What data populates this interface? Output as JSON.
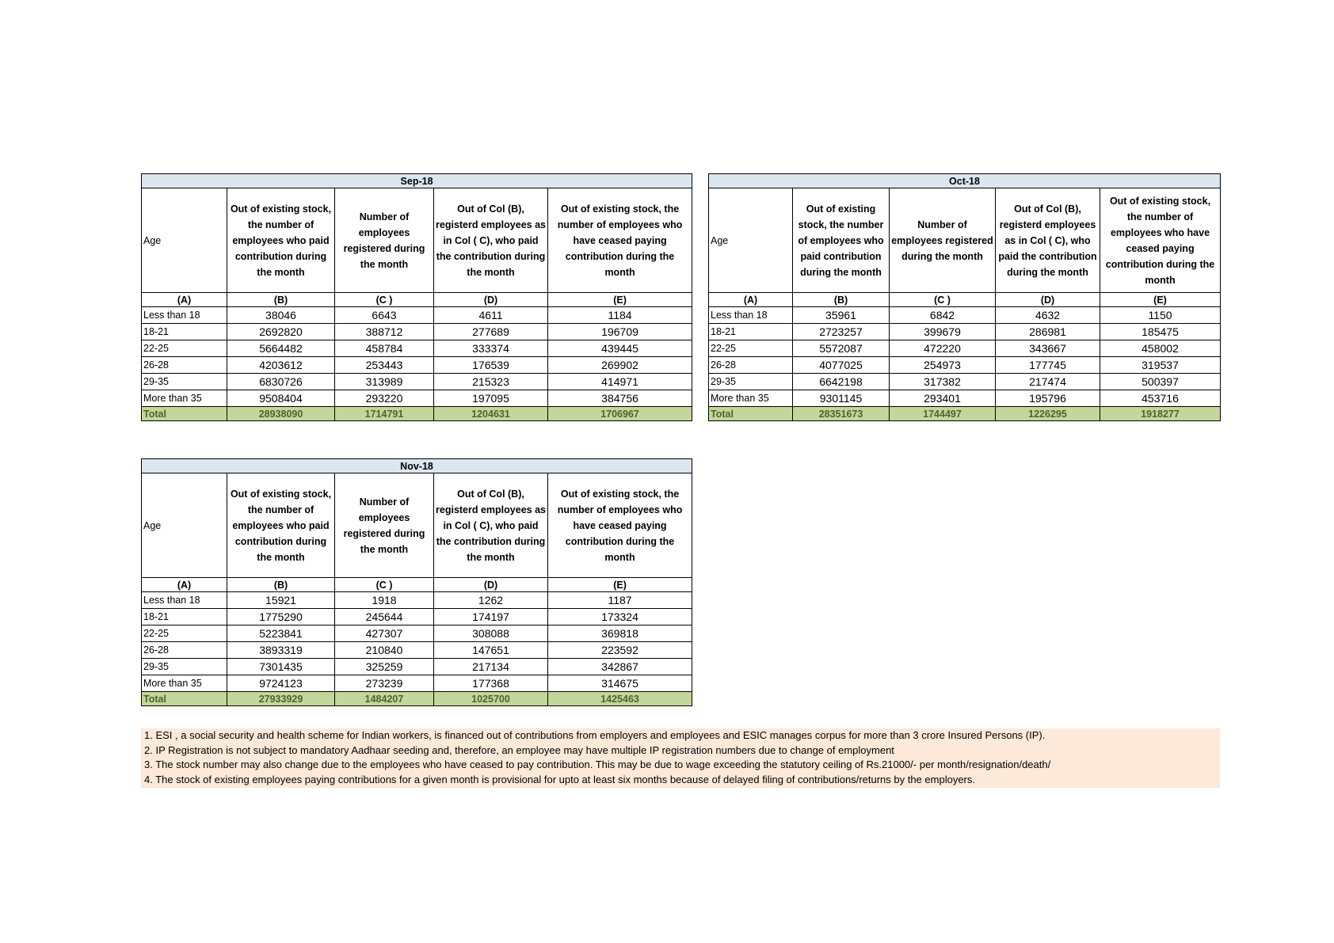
{
  "tables": [
    {
      "title": "Sep-18",
      "headers": [
        "Age",
        "Out of existing stock, the number of employees who paid contribution during the month",
        "Number of employees registered during the month",
        "Out of Col (B), registerd employees as in Col ( C), who paid the contribution during the month",
        "Out of existing stock, the number of  employees  who have ceased paying contribution during the month"
      ],
      "letters": [
        "(A)",
        "(B)",
        "(C )",
        "(D)",
        "(E)"
      ],
      "rows": [
        [
          "Less than 18",
          38046,
          6643,
          4611,
          1184
        ],
        [
          "18-21",
          2692820,
          388712,
          277689,
          196709
        ],
        [
          "22-25",
          5664482,
          458784,
          333374,
          439445
        ],
        [
          "26-28",
          4203612,
          253443,
          176539,
          269902
        ],
        [
          "29-35",
          6830726,
          313989,
          215323,
          414971
        ],
        [
          "More than 35",
          9508404,
          293220,
          197095,
          384756
        ]
      ],
      "total": [
        "Total",
        28938090,
        1714791,
        1204631,
        1706967
      ]
    },
    {
      "title": "Oct-18",
      "headers": [
        "Age",
        "Out of existing stock, the number of employees who paid contribution during the month",
        "Number of employees registered during the month",
        "Out of Col (B), registerd employees as in Col ( C), who paid the contribution during the month",
        "Out of existing stock, the number of  employees  who have ceased paying contribution during the month"
      ],
      "letters": [
        "(A)",
        "(B)",
        "(C )",
        "(D)",
        "(E)"
      ],
      "rows": [
        [
          "Less than 18",
          35961,
          6842,
          4632,
          1150
        ],
        [
          "18-21",
          2723257,
          399679,
          286981,
          185475
        ],
        [
          "22-25",
          5572087,
          472220,
          343667,
          458002
        ],
        [
          "26-28",
          4077025,
          254973,
          177745,
          319537
        ],
        [
          "29-35",
          6642198,
          317382,
          217474,
          500397
        ],
        [
          "More than 35",
          9301145,
          293401,
          195796,
          453716
        ]
      ],
      "total": [
        "Total",
        28351673,
        1744497,
        1226295,
        1918277
      ]
    },
    {
      "title": "Nov-18",
      "headers": [
        "Age",
        "Out of existing stock, the number of employees who paid contribution during the month",
        "Number of employees registered during the month",
        "Out of Col (B), registerd employees as in Col ( C), who paid the contribution during the month",
        "Out of existing stock, the number of  employees  who have ceased paying contribution during the month"
      ],
      "letters": [
        "(A)",
        "(B)",
        "(C )",
        "(D)",
        "(E)"
      ],
      "rows": [
        [
          "Less than 18",
          15921,
          1918,
          1262,
          1187
        ],
        [
          "18-21",
          1775290,
          245644,
          174197,
          173324
        ],
        [
          "22-25",
          5223841,
          427307,
          308088,
          369818
        ],
        [
          "26-28",
          3893319,
          210840,
          147651,
          223592
        ],
        [
          "29-35",
          7301435,
          325259,
          217134,
          342867
        ],
        [
          "More than 35",
          9724123,
          273239,
          177368,
          314675
        ]
      ],
      "total": [
        "Total",
        27933929,
        1484207,
        1025700,
        1425463
      ]
    }
  ],
  "notes": [
    "1. ESI , a social security and health scheme for Indian workers, is financed out of contributions from employers and employees and ESIC manages corpus for more than 3 crore Insured Persons (IP).",
    "2. IP Registration is not subject to mandatory Aadhaar seeding and, therefore, an employee may have multiple IP registration numbers due to change of employment",
    "3. The stock number may also change due to the employees who have ceased to pay contribution. This may  be due to wage exceeding the statutory ceiling of  Rs.21000/- per month/resignation/death/",
    "4. The stock of existing employees paying contributions for a given month is provisional for upto at least six months because of delayed filing of contributions/returns by the employers."
  ]
}
